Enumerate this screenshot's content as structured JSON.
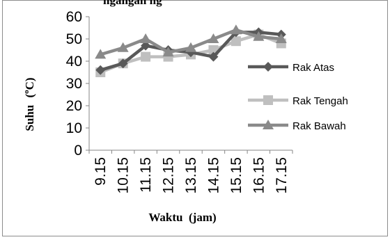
{
  "chart_data": {
    "type": "line",
    "title": "",
    "cutoff_title_fragment": "ngangan ng",
    "xlabel": "Waktu  (jam)",
    "ylabel": "Suhu (°C)",
    "ylabel_parts": {
      "word": "Suhu",
      "open": "(",
      "sup": "o",
      "unit": "C)"
    },
    "ylim": [
      0,
      60
    ],
    "yticks": [
      "0",
      "10",
      "20",
      "30",
      "40",
      "50",
      "60"
    ],
    "categories": [
      "9.15",
      "10.15",
      "11.15",
      "12.15",
      "13.15",
      "14.15",
      "15.15",
      "16.15",
      "17.15"
    ],
    "legend_position": "right",
    "grid": false,
    "series": [
      {
        "name": "Rak Atas",
        "color": "#595959",
        "marker": "diamond",
        "values": [
          36,
          39,
          47,
          45,
          44,
          42,
          53,
          53,
          52
        ]
      },
      {
        "name": "Rak Tengah",
        "color": "#bfbfbf",
        "marker": "square",
        "values": [
          35,
          39,
          42,
          42,
          43,
          45,
          49,
          52,
          48
        ]
      },
      {
        "name": "Rak Bawah",
        "color": "#8a8a8a",
        "marker": "triangle",
        "values": [
          43,
          46,
          50,
          44,
          46,
          50,
          54,
          51,
          50
        ]
      }
    ]
  }
}
